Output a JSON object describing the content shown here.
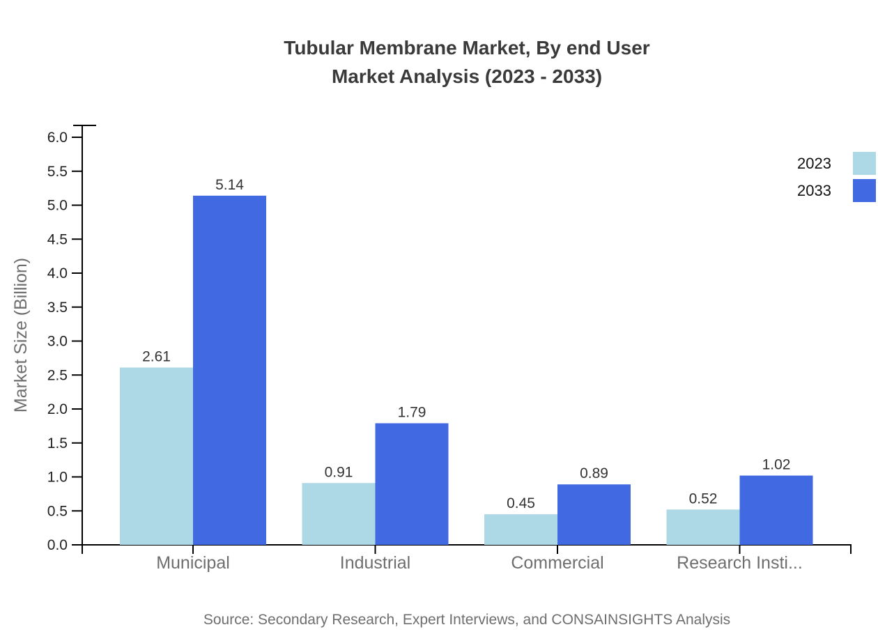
{
  "header": {
    "title_line1": "Tubular Membrane Market, By end User",
    "title_line2": "Market Analysis (2023 - 2033)"
  },
  "chart_data": {
    "type": "bar",
    "title": "Tubular Membrane Market, By end User Market Analysis (2023 - 2033)",
    "categories": [
      "Municipal",
      "Industrial",
      "Commercial",
      "Research Insti..."
    ],
    "series": [
      {
        "name": "2023",
        "color": "#ADD8E6",
        "values": [
          2.61,
          0.91,
          0.45,
          0.52
        ]
      },
      {
        "name": "2033",
        "color": "#4169E1",
        "values": [
          5.14,
          1.79,
          0.89,
          1.02
        ]
      }
    ],
    "xlabel": "",
    "ylabel": "Market Size (Billion)",
    "ylim": [
      0,
      6.0
    ],
    "ytick_step": 0.5,
    "ytick_labels": [
      "0.0",
      "0.5",
      "1.0",
      "1.5",
      "2.0",
      "2.5",
      "3.0",
      "3.5",
      "4.0",
      "4.5",
      "5.0",
      "5.5",
      "6.0"
    ],
    "grid": false,
    "legend_position": "top-right",
    "value_label_decimals": 2
  },
  "colors": {
    "title_text": "#3a3a3a",
    "axis_line": "#000000",
    "tick_label_text": "#1f1f1f",
    "muted_text": "#6e6e6e",
    "value_label_text": "#333333"
  },
  "footer": {
    "source": "Source: Secondary Research, Expert Interviews, and CONSAINSIGHTS Analysis"
  }
}
